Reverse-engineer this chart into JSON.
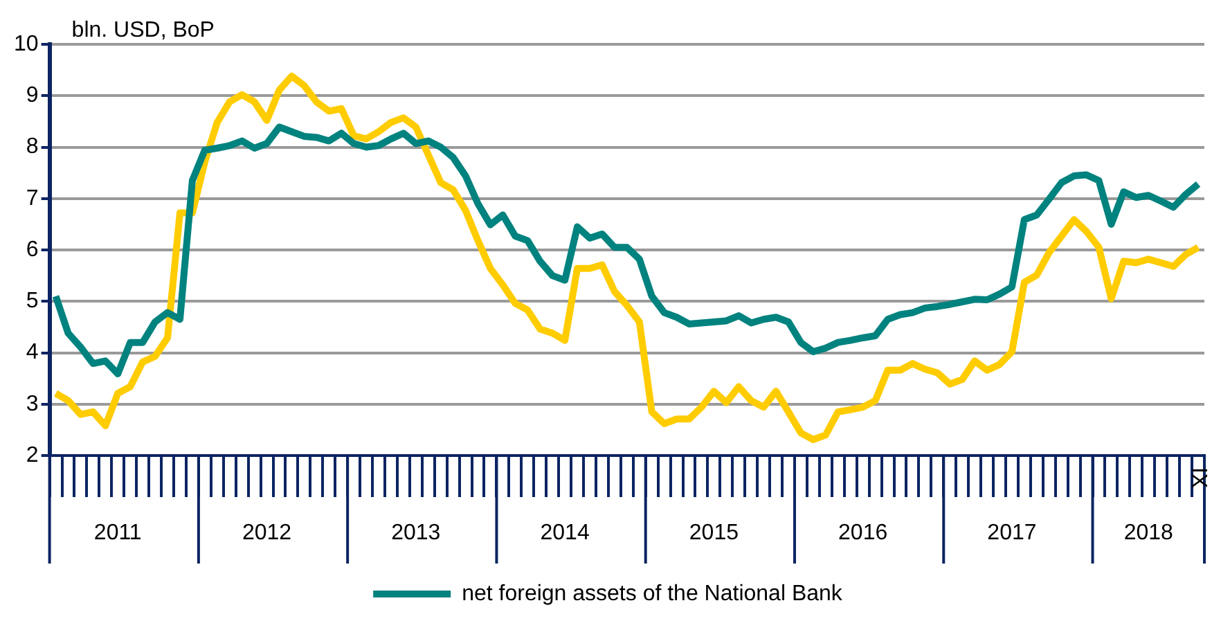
{
  "chart_data": {
    "type": "line",
    "ylabel": "bln. USD, BoP",
    "categories": [
      null,
      null,
      null,
      null,
      null,
      "2011",
      null,
      null,
      null,
      null,
      null,
      null,
      null,
      null,
      null,
      null,
      null,
      "2012",
      null,
      null,
      null,
      null,
      null,
      null,
      null,
      null,
      null,
      null,
      null,
      "2013",
      null,
      null,
      null,
      null,
      null,
      null,
      null,
      null,
      null,
      null,
      null,
      "2014",
      null,
      null,
      null,
      null,
      null,
      null,
      null,
      null,
      null,
      null,
      null,
      "2015",
      null,
      null,
      null,
      null,
      null,
      null,
      null,
      null,
      null,
      null,
      null,
      "2016",
      null,
      null,
      null,
      null,
      null,
      null,
      null,
      null,
      null,
      null,
      null,
      "2017",
      null,
      null,
      null,
      null,
      null,
      null,
      null,
      null,
      null,
      null,
      "2018",
      null,
      null,
      null,
      "IX"
    ],
    "series": [
      {
        "name": "net foreign assets of the National Bank",
        "color": "#00827f",
        "values": [
          5.1,
          4.38,
          4.11,
          3.79,
          3.84,
          3.59,
          4.2,
          4.2,
          4.6,
          4.78,
          4.65,
          7.35,
          7.94,
          7.98,
          8.03,
          8.12,
          7.98,
          8.07,
          8.39,
          8.3,
          8.21,
          8.19,
          8.12,
          8.27,
          8.07,
          8.0,
          8.03,
          8.16,
          8.27,
          8.07,
          8.12,
          8.0,
          7.8,
          7.44,
          6.9,
          6.49,
          6.68,
          6.27,
          6.18,
          5.78,
          5.5,
          5.41,
          6.45,
          6.23,
          6.31,
          6.05,
          6.05,
          5.82,
          5.1,
          4.78,
          4.69,
          4.56,
          4.58,
          4.6,
          4.62,
          4.72,
          4.58,
          4.65,
          4.69,
          4.6,
          4.2,
          4.02,
          4.09,
          4.2,
          4.24,
          4.29,
          4.33,
          4.65,
          4.74,
          4.78,
          4.87,
          4.9,
          4.94,
          4.99,
          5.04,
          5.03,
          5.14,
          5.28,
          6.59,
          6.68,
          6.99,
          7.31,
          7.44,
          7.46,
          7.35,
          6.5,
          7.13,
          7.02,
          7.06,
          6.95,
          6.83,
          7.08,
          7.28
        ]
      },
      {
        "color": "#ffcc00",
        "values": [
          3.21,
          3.07,
          2.8,
          2.85,
          2.58,
          3.21,
          3.34,
          3.82,
          3.93,
          4.29,
          6.72,
          6.72,
          7.71,
          8.48,
          8.88,
          9.02,
          8.88,
          8.52,
          9.11,
          9.38,
          9.2,
          8.88,
          8.7,
          8.75,
          8.22,
          8.16,
          8.3,
          8.48,
          8.57,
          8.39,
          7.85,
          7.31,
          7.17,
          6.77,
          6.18,
          5.64,
          5.32,
          4.96,
          4.83,
          4.46,
          4.38,
          4.24,
          5.64,
          5.64,
          5.71,
          5.19,
          4.92,
          4.6,
          2.85,
          2.62,
          2.71,
          2.71,
          2.94,
          3.25,
          3.03,
          3.34,
          3.07,
          2.94,
          3.25,
          2.85,
          2.44,
          2.31,
          2.4,
          2.85,
          2.89,
          2.94,
          3.07,
          3.66,
          3.66,
          3.79,
          3.68,
          3.61,
          3.39,
          3.48,
          3.84,
          3.66,
          3.77,
          4.02,
          5.37,
          5.51,
          5.95,
          6.27,
          6.59,
          6.36,
          6.05,
          5.05,
          5.78,
          5.75,
          5.82,
          5.75,
          5.68,
          5.91,
          6.05
        ]
      }
    ],
    "ylim": [
      2,
      10
    ],
    "yticks": [
      2,
      3,
      4,
      5,
      6,
      7,
      8,
      9,
      10
    ],
    "grid": "y",
    "legend": "bottom"
  }
}
